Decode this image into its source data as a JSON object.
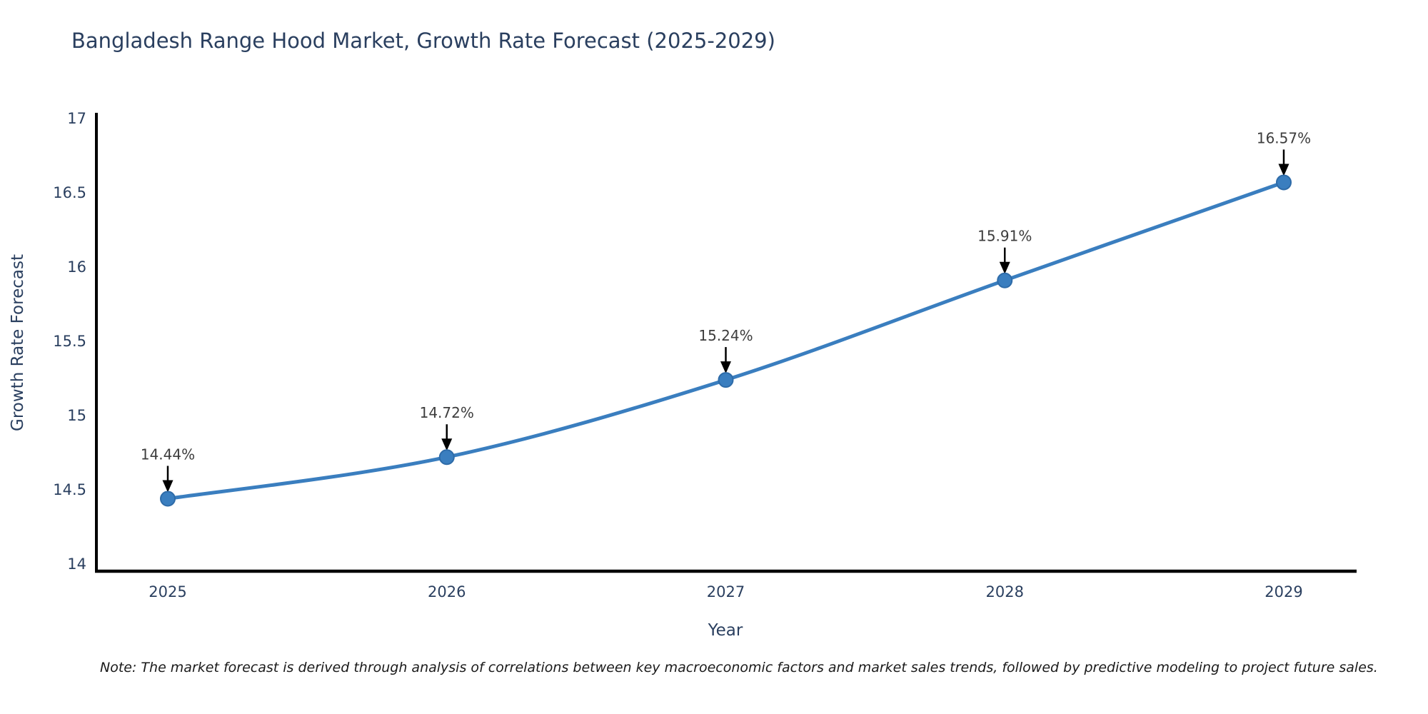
{
  "chart_data": {
    "type": "line",
    "line_style": "spline",
    "title": "Bangladesh Range Hood Market, Growth Rate Forecast (2025-2029)",
    "xlabel": "Year",
    "ylabel": "Growth Rate Forecast",
    "categories": [
      "2025",
      "2026",
      "2027",
      "2028",
      "2029"
    ],
    "values": [
      14.44,
      14.72,
      15.24,
      15.91,
      16.57
    ],
    "point_labels": [
      "14.44%",
      "14.72%",
      "15.24%",
      "15.91%",
      "16.57%"
    ],
    "ylim": [
      14,
      17
    ],
    "yticks": [
      14,
      14.5,
      15,
      15.5,
      16,
      16.5,
      17
    ],
    "ytick_labels": [
      "14",
      "14.5",
      "15",
      "15.5",
      "16",
      "16.5",
      "17"
    ],
    "grid": false,
    "legend": "none",
    "note": "Note: The market forecast is derived through analysis of correlations between key macroeconomic factors and market sales trends, followed by predictive modeling to project future sales.",
    "colors": {
      "line": "#3a7ebf",
      "marker": "#3a7ebf",
      "marker_edge": "#2e6ba8",
      "axis": "#000000",
      "tick_text": "#2a3f5f",
      "title_text": "#2a3f5f",
      "axis_title_text": "#2a3f5f",
      "annotation_text": "#3d3d3d",
      "arrow": "#000000",
      "note_text": "#1a1a1a",
      "background": "#ffffff"
    }
  }
}
